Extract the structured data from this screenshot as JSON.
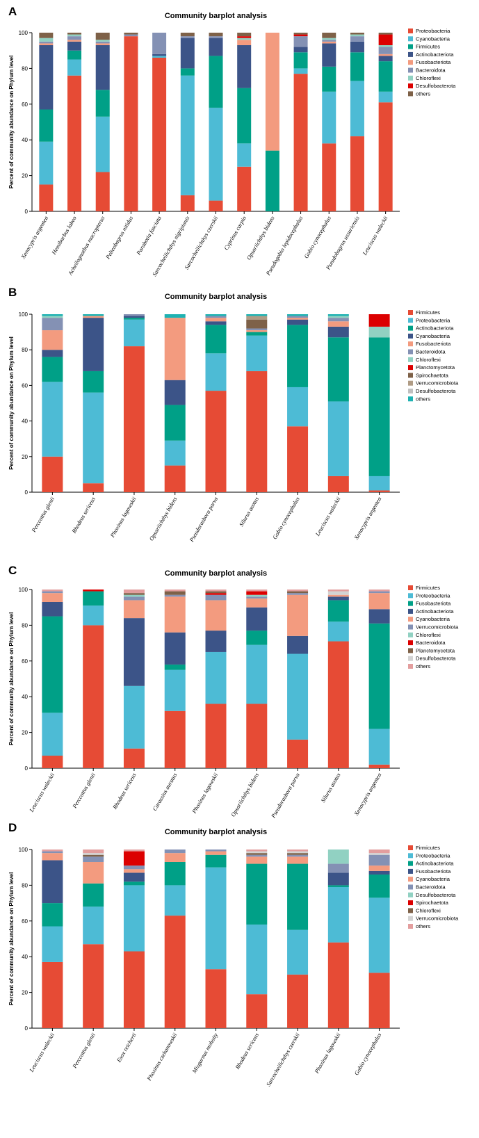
{
  "chart_data": [
    {
      "panel": "A",
      "type": "bar",
      "stacked": true,
      "title": "Community barplot analysis",
      "xlabel": "",
      "ylabel": "Percent of community abundance on Phylum level",
      "ylim": [
        0,
        100
      ],
      "yticks": [
        "0",
        "20",
        "40",
        "60",
        "80",
        "100"
      ],
      "legend_position": "right",
      "categories": [
        "Xenocypris argentea",
        "Hemibarbus labeo",
        "Acheilognathus macropterus",
        "Pelteobagrus nitidus",
        "Parabotia fasciata",
        "Sarcocheilichthys nigripinnis",
        "Sarcocheilichthys czerskii",
        "Cyprinus carpio",
        "Opsariichthys bidens",
        "Pseudogobio lepidocephalus",
        "Gobio cynocephalus",
        "Pseudobagrus ussuriensis",
        "Leuciscus waleckii"
      ],
      "series": [
        {
          "name": "Proteobacteria",
          "color": "#e64b35",
          "values": [
            15,
            76,
            22,
            98,
            86,
            9,
            6,
            25,
            0,
            77,
            38,
            42,
            61
          ]
        },
        {
          "name": "Cyanobacteria",
          "color": "#4dbbd5",
          "values": [
            24,
            9,
            31,
            0,
            1,
            67,
            52,
            13,
            0,
            3,
            29,
            31,
            6
          ]
        },
        {
          "name": "Firmicutes",
          "color": "#00a087",
          "values": [
            18,
            5,
            15,
            0,
            0,
            4,
            29,
            31,
            34,
            9,
            14,
            16,
            17
          ]
        },
        {
          "name": "Actinobacteriota",
          "color": "#3c5488",
          "values": [
            36,
            5,
            25,
            0,
            1,
            17,
            10,
            24,
            0,
            3,
            13,
            6,
            3
          ]
        },
        {
          "name": "Fusobacteriota",
          "color": "#f39b7f",
          "values": [
            1,
            1,
            1,
            0,
            0,
            0,
            0,
            3,
            66,
            0,
            1,
            0,
            1
          ]
        },
        {
          "name": "Bacteroidota",
          "color": "#8491b4",
          "values": [
            1,
            2,
            1,
            1,
            12,
            1,
            1,
            0,
            0,
            6,
            1,
            3,
            4
          ]
        },
        {
          "name": "Chloroflexi",
          "color": "#91d1c2",
          "values": [
            2,
            1,
            1,
            0,
            0,
            0,
            0,
            1,
            0,
            0,
            1,
            1,
            1
          ]
        },
        {
          "name": "Desulfobacterota",
          "color": "#dc0000",
          "values": [
            0,
            0,
            0,
            0,
            0,
            0,
            0,
            1,
            0,
            1,
            0,
            0,
            6
          ]
        },
        {
          "name": "others",
          "color": "#7e6148",
          "values": [
            3,
            1,
            4,
            1,
            0,
            2,
            2,
            2,
            0,
            1,
            3,
            1,
            1
          ]
        }
      ]
    },
    {
      "panel": "B",
      "type": "bar",
      "stacked": true,
      "title": "Community barplot analysis",
      "xlabel": "",
      "ylabel": "Percent of community abundance on Phylum level",
      "ylim": [
        0,
        100
      ],
      "yticks": [
        "0",
        "20",
        "40",
        "60",
        "80",
        "100"
      ],
      "legend_position": "right",
      "categories": [
        "Perccottus glenii",
        "Rhodeus sericeus",
        "Phoxinus lagowskii",
        "Opsariichthys bidens",
        "Pseudorasbora parva",
        "Silurus asotus",
        "Gobio cynocephalus",
        "Leuciscus waleckii",
        "Xenocypris argentea"
      ],
      "series": [
        {
          "name": "Firmicutes",
          "color": "#e64b35",
          "values": [
            20,
            5,
            82,
            15,
            57,
            68,
            37,
            9,
            1
          ]
        },
        {
          "name": "Proteobacteria",
          "color": "#4dbbd5",
          "values": [
            42,
            51,
            15,
            14,
            21,
            20,
            22,
            42,
            8
          ]
        },
        {
          "name": "Actinobacteriota",
          "color": "#00a087",
          "values": [
            14,
            12,
            1,
            20,
            16,
            2,
            35,
            36,
            78
          ]
        },
        {
          "name": "Cyanobacteria",
          "color": "#3c5488",
          "values": [
            4,
            30,
            1,
            14,
            2,
            0,
            3,
            6,
            0
          ]
        },
        {
          "name": "Fusobacteriota",
          "color": "#f39b7f",
          "values": [
            11,
            1,
            0,
            35,
            2,
            1,
            1,
            3,
            0
          ]
        },
        {
          "name": "Bacteroidota",
          "color": "#8491b4",
          "values": [
            7,
            0,
            1,
            0,
            1,
            1,
            1,
            2,
            0
          ]
        },
        {
          "name": "Chloroflexi",
          "color": "#91d1c2",
          "values": [
            1,
            0,
            0,
            0,
            0,
            0,
            0,
            1,
            6
          ]
        },
        {
          "name": "Planctomycetota",
          "color": "#dc0000",
          "values": [
            0,
            0,
            0,
            0,
            0,
            0,
            0,
            0,
            7
          ]
        },
        {
          "name": "Spirochaetota",
          "color": "#7e6148",
          "values": [
            0,
            0,
            0,
            0,
            0,
            5,
            0,
            0,
            0
          ]
        },
        {
          "name": "Verrucomicrobiota",
          "color": "#b09c85",
          "values": [
            0,
            0,
            0,
            0,
            0,
            2,
            0,
            0,
            0
          ]
        },
        {
          "name": "Desulfobacterota",
          "color": "#c0c0c0",
          "values": [
            0,
            0,
            0,
            0,
            0,
            0,
            0,
            0,
            0
          ]
        },
        {
          "name": "others",
          "color": "#1eb2b2",
          "values": [
            1,
            1,
            0,
            2,
            1,
            1,
            1,
            1,
            0
          ]
        }
      ]
    },
    {
      "panel": "C",
      "type": "bar",
      "stacked": true,
      "title": "Community barplot analysis",
      "xlabel": "",
      "ylabel": "Percent of community abundance on Phylum level",
      "ylim": [
        0,
        100
      ],
      "yticks": [
        "0",
        "20",
        "40",
        "60",
        "80",
        "100"
      ],
      "legend_position": "right",
      "categories": [
        "Leuciscus waleckii",
        "Perccottus glenii",
        "Rhodeus sericeus",
        "Carassius auratus",
        "Phoxinus lagowskii",
        "Opsariichthys bidens",
        "Pseudorasbora parva",
        "Silurus asotus",
        "Xenocypris argentea"
      ],
      "series": [
        {
          "name": "Firmicutes",
          "color": "#e64b35",
          "values": [
            7,
            80,
            11,
            32,
            36,
            36,
            16,
            71,
            2
          ]
        },
        {
          "name": "Proteobacteria",
          "color": "#4dbbd5",
          "values": [
            24,
            11,
            35,
            23,
            29,
            33,
            48,
            11,
            20
          ]
        },
        {
          "name": "Fusobacteriota",
          "color": "#00a087",
          "values": [
            54,
            8,
            0,
            3,
            0,
            8,
            0,
            12,
            59
          ]
        },
        {
          "name": "Actinobacteriota",
          "color": "#3c5488",
          "values": [
            8,
            0,
            38,
            18,
            12,
            13,
            10,
            2,
            8
          ]
        },
        {
          "name": "Cyanobacteria",
          "color": "#f39b7f",
          "values": [
            5,
            0,
            10,
            20,
            17,
            5,
            23,
            1,
            9
          ]
        },
        {
          "name": "Verrucomicrobiota",
          "color": "#8491b4",
          "values": [
            1,
            0,
            2,
            1,
            3,
            1,
            1,
            0,
            1
          ]
        },
        {
          "name": "Chloroflexi",
          "color": "#91d1c2",
          "values": [
            0,
            0,
            1,
            0,
            0,
            1,
            0,
            0,
            0
          ]
        },
        {
          "name": "Bacteroidota",
          "color": "#dc0000",
          "values": [
            0,
            1,
            0,
            0,
            1,
            2,
            0,
            0,
            0
          ]
        },
        {
          "name": "Planctomycetota",
          "color": "#7e6148",
          "values": [
            0,
            0,
            1,
            2,
            1,
            0,
            1,
            0,
            0
          ]
        },
        {
          "name": "Desulfobacterota",
          "color": "#d3d3d3",
          "values": [
            0,
            0,
            0,
            0,
            0,
            0,
            0,
            2,
            0
          ]
        },
        {
          "name": "others",
          "color": "#e39e9e",
          "values": [
            1,
            0,
            2,
            1,
            1,
            1,
            1,
            1,
            1
          ]
        }
      ]
    },
    {
      "panel": "D",
      "type": "bar",
      "stacked": true,
      "title": "Community barplot analysis",
      "xlabel": "",
      "ylabel": "Percent of community abundance on Phylum level",
      "ylim": [
        0,
        100
      ],
      "yticks": [
        "0",
        "20",
        "40",
        "60",
        "80",
        "100"
      ],
      "legend_position": "right",
      "categories": [
        "Leuciscus waleckii",
        "Perccottus glenii",
        "Esox reicherti",
        "Phoxinus czekanowskii",
        "Misgurnus mohoity",
        "Rhodeus sericeus",
        "Sarcocheilichthys czerskii",
        "Phoxinus lagowskii",
        "Gobio cynocephalus"
      ],
      "series": [
        {
          "name": "Firmicutes",
          "color": "#e64b35",
          "values": [
            37,
            47,
            43,
            63,
            33,
            19,
            30,
            48,
            31
          ]
        },
        {
          "name": "Proteobacteria",
          "color": "#4dbbd5",
          "values": [
            20,
            21,
            37,
            17,
            57,
            39,
            25,
            31,
            42
          ]
        },
        {
          "name": "Actinobacteriota",
          "color": "#00a087",
          "values": [
            13,
            13,
            2,
            13,
            7,
            34,
            37,
            1,
            13
          ]
        },
        {
          "name": "Fusobacteriota",
          "color": "#3c5488",
          "values": [
            24,
            0,
            5,
            0,
            0,
            0,
            0,
            7,
            2
          ]
        },
        {
          "name": "Cyanobacteria",
          "color": "#f39b7f",
          "values": [
            4,
            12,
            2,
            5,
            2,
            4,
            4,
            0,
            3
          ]
        },
        {
          "name": "Bacteroidota",
          "color": "#8491b4",
          "values": [
            1,
            3,
            2,
            2,
            1,
            1,
            1,
            5,
            6
          ]
        },
        {
          "name": "Desulfobacterota",
          "color": "#91d1c2",
          "values": [
            0,
            0,
            0,
            0,
            0,
            0,
            0,
            8,
            0
          ]
        },
        {
          "name": "Spirochaetota",
          "color": "#dc0000",
          "values": [
            0,
            0,
            8,
            0,
            0,
            0,
            0,
            0,
            0
          ]
        },
        {
          "name": "Chloroflexi",
          "color": "#7e6148",
          "values": [
            0,
            1,
            0,
            0,
            0,
            1,
            1,
            0,
            0
          ]
        },
        {
          "name": "Verrucomicrobiota",
          "color": "#d3d3d3",
          "values": [
            0,
            1,
            0,
            0,
            0,
            1,
            1,
            0,
            1
          ]
        },
        {
          "name": "others",
          "color": "#e39e9e",
          "values": [
            1,
            2,
            1,
            0,
            0,
            1,
            1,
            0,
            2
          ]
        }
      ]
    }
  ]
}
